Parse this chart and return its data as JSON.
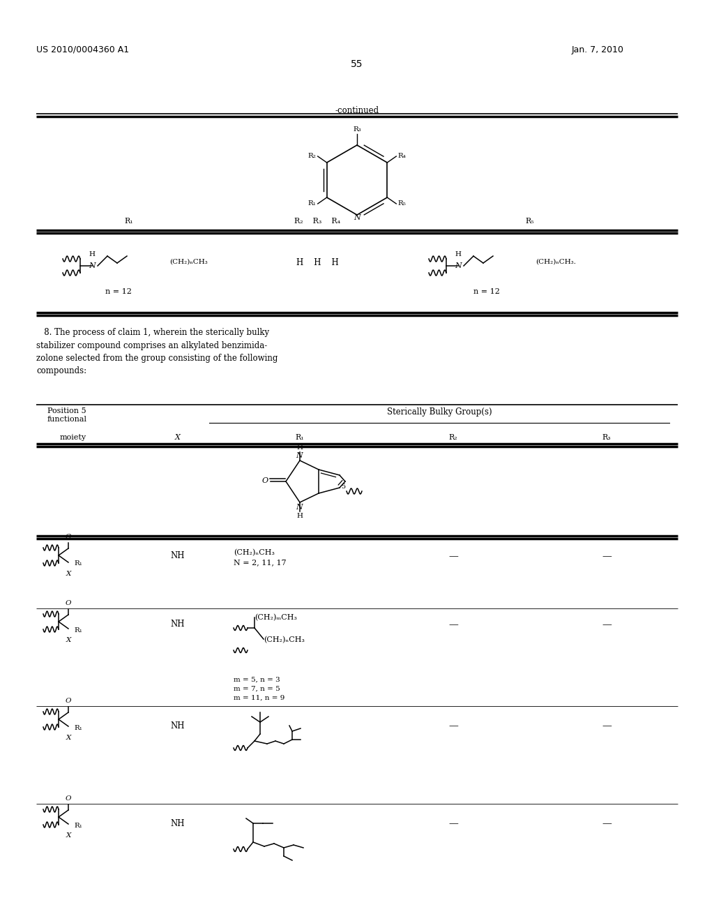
{
  "patent_number": "US 2010/0004360 A1",
  "date": "Jan. 7, 2010",
  "page_number": "55",
  "continued_label": "-continued",
  "background_color": "#ffffff",
  "claim8_text": "   8. The process of claim 1, wherein the sterically bulky\nstabilizer compound comprises an alkylated benzimida-\nzolone selected from the group consisting of the following\ncompounds:",
  "row1_R1_line1": "(CH₂)ₙCH₃",
  "row1_R1_line2": "N = 2, 11, 17",
  "row2_R1_top": "(CH₂)ₘCH₃",
  "row2_R1_bot": "(CH₂)ₙCH₃",
  "row2_params": "m = 5, n = 3\nm = 7, n = 5\nm = 11, n = 9",
  "hdr1_R1": "R₁",
  "hdr1_R234": "R₂    R₃    R₄",
  "hdr1_R5": "R₅",
  "hdr1_HHH": "H    H    H",
  "n12": "n = 12",
  "tbl2_pos5": "Position 5\nfunctional",
  "tbl2_sbg": "Sterically Bulky Group(s)",
  "tbl2_moiety": "moiety",
  "tbl2_X": "X",
  "tbl2_R1": "R₁",
  "tbl2_R2": "R₂",
  "tbl2_R3": "R₃",
  "dash": "—",
  "NH": "NH"
}
